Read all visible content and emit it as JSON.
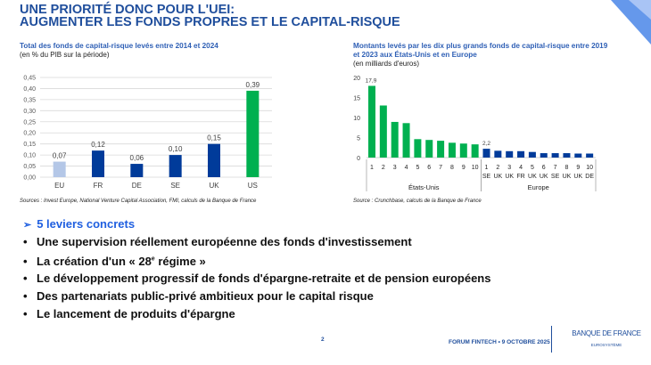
{
  "header": {
    "title_line1": "UNE PRIORITÉ DONC POUR L'UEI:",
    "title_line2": "AUGMENTER LES FONDS PROPRES ET LE CAPITAL-RISQUE"
  },
  "chart_data": [
    {
      "type": "bar",
      "title": "Total des fonds de capital-risque levés entre 2014 et 2024",
      "subtitle": "(en % du PIB sur la période)",
      "categories": [
        "EU",
        "FR",
        "DE",
        "SE",
        "UK",
        "US"
      ],
      "values": [
        0.07,
        0.12,
        0.06,
        0.1,
        0.15,
        0.39
      ],
      "data_labels": [
        "0,07",
        "0,12",
        "0,06",
        "0,10",
        "0,15",
        "0,39"
      ],
      "colors": [
        "#b4c7e7",
        "#003b9a",
        "#003b9a",
        "#003b9a",
        "#003b9a",
        "#00b050"
      ],
      "yticks": [
        "0,00",
        "0,05",
        "0,10",
        "0,15",
        "0,20",
        "0,25",
        "0,30",
        "0,35",
        "0,40",
        "0,45"
      ],
      "ylim": [
        0,
        0.45
      ],
      "grid": true,
      "source": "Sources : Invest Europe, National Venture Capital Association, FMI, calculs de la Banque de France"
    },
    {
      "type": "bar",
      "title": "Montants levés par les dix plus grands fonds de capital-risque entre 2019 et 2023 aux États-Unis et en Europe",
      "subtitle": "(en milliards d'euros)",
      "groups": [
        {
          "name": "États-Unis",
          "color": "#00b050",
          "categories": [
            "1",
            "2",
            "3",
            "4",
            "5",
            "6",
            "7",
            "8",
            "9",
            "10"
          ],
          "countries": [
            "",
            "",
            "",
            "",
            "",
            "",
            "",
            "",
            "",
            ""
          ],
          "values": [
            17.9,
            13.0,
            8.9,
            8.6,
            4.6,
            4.4,
            4.2,
            3.7,
            3.5,
            3.3
          ],
          "data_label": "17,9"
        },
        {
          "name": "Europe",
          "color": "#003b9a",
          "categories": [
            "1",
            "2",
            "3",
            "4",
            "5",
            "6",
            "7",
            "8",
            "9",
            "10"
          ],
          "countries": [
            "SE",
            "UK",
            "UK",
            "FR",
            "UK",
            "UK",
            "SE",
            "UK",
            "UK",
            "DE"
          ],
          "values": [
            2.2,
            1.7,
            1.6,
            1.6,
            1.4,
            1.1,
            1.1,
            1.1,
            1.0,
            1.0
          ],
          "data_label": "2,2"
        }
      ],
      "yticks": [
        "0",
        "5",
        "10",
        "15",
        "20"
      ],
      "ylim": [
        0,
        20
      ],
      "grid": false,
      "source": "Source : Crunchbase, calculs de la Banque de France"
    }
  ],
  "levers": {
    "heading": "5 leviers concrets",
    "items": [
      {
        "text": "Une supervision réellement européenne des fonds d'investissement"
      },
      {
        "text": "La création d'un « 28",
        "sup": "e",
        "text_after": " régime »"
      },
      {
        "text": "Le développement progressif de fonds d'épargne-retraite et de pension européens"
      },
      {
        "text": "Des partenariats public-privé ambitieux pour le capital risque"
      },
      {
        "text": "Le lancement de produits d'épargne"
      }
    ]
  },
  "footer": {
    "page_number": "2",
    "event": "FORUM FINTECH • 9 OCTOBRE 2025",
    "logo_name": "BANQUE DE FRANCE",
    "logo_sub": "EUROSYSTÈME"
  },
  "colors": {
    "brand_blue": "#1f4e9c",
    "accent_blue": "#1f5fe0",
    "green": "#00b050"
  }
}
